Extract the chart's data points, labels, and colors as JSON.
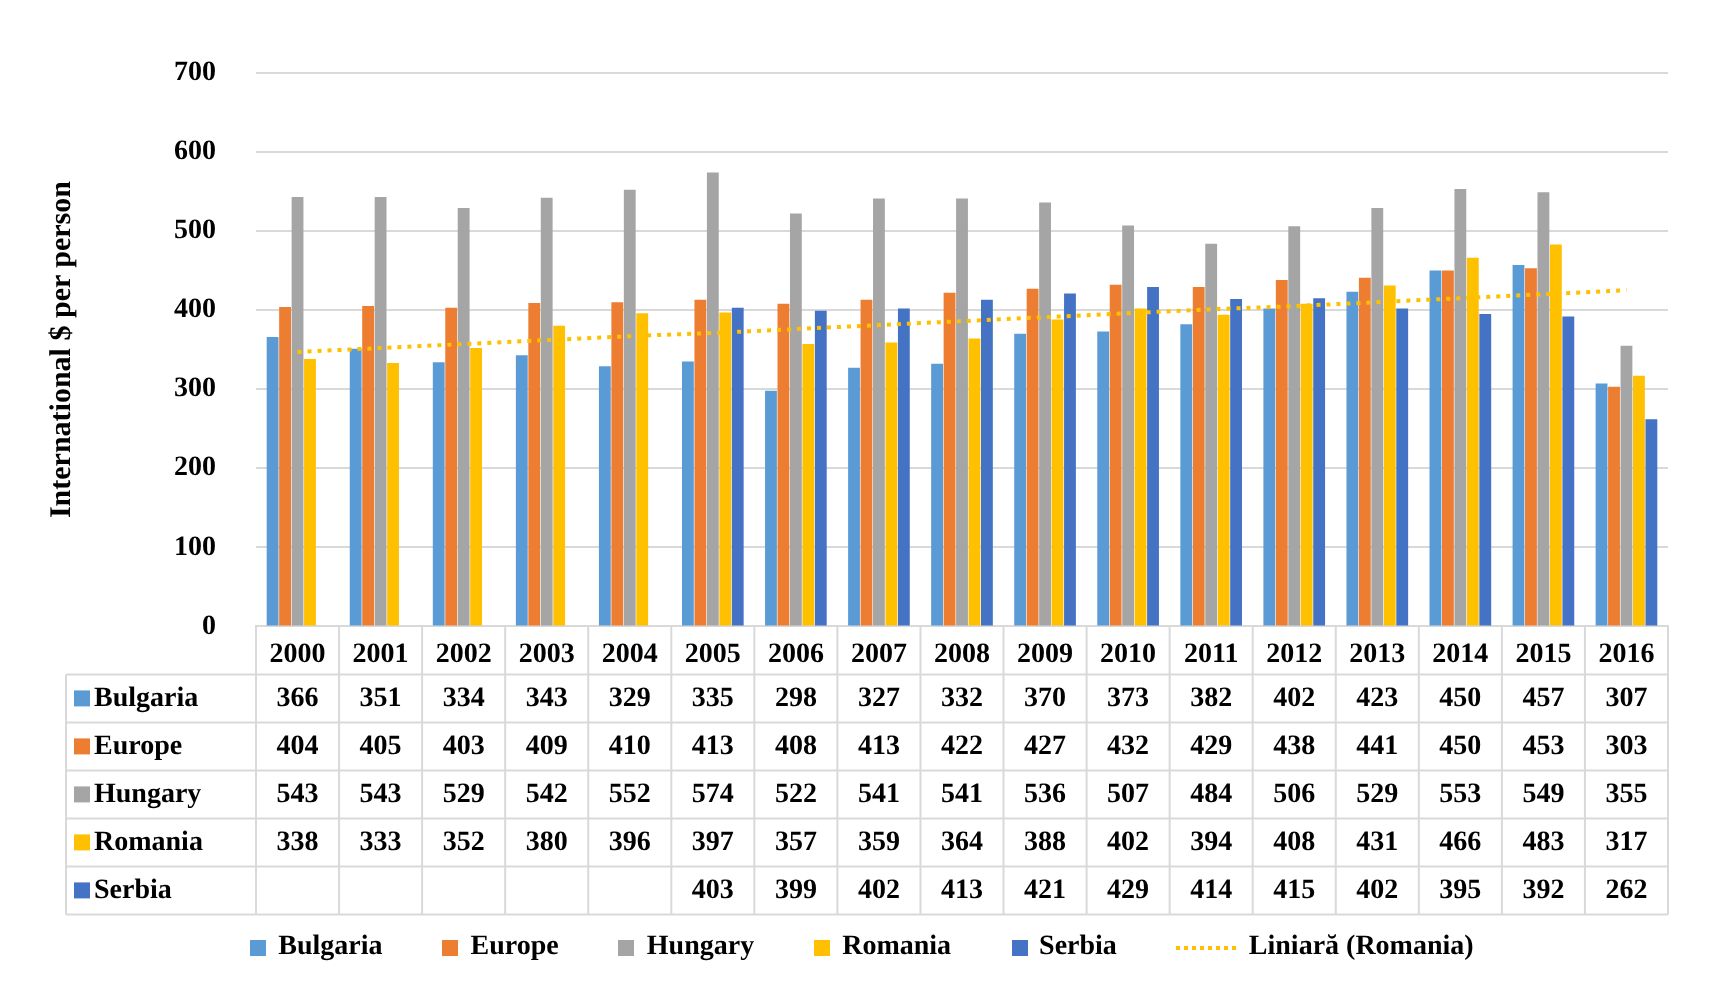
{
  "chart_data": {
    "type": "bar",
    "ylabel": "International $ per person",
    "categories": [
      "2000",
      "2001",
      "2002",
      "2003",
      "2004",
      "2005",
      "2006",
      "2007",
      "2008",
      "2009",
      "2010",
      "2011",
      "2012",
      "2013",
      "2014",
      "2015",
      "2016"
    ],
    "series": [
      {
        "name": "Bulgaria",
        "color": "#5b9bd5",
        "values": [
          366,
          351,
          334,
          343,
          329,
          335,
          298,
          327,
          332,
          370,
          373,
          382,
          402,
          423,
          450,
          457,
          307
        ],
        "value_labels": [
          "366",
          "351",
          "334",
          "343",
          "329",
          "335",
          "298",
          "327",
          "332",
          "370",
          "373",
          "382",
          "402",
          "423",
          "450",
          "457",
          "307"
        ]
      },
      {
        "name": "Europe",
        "color": "#ed7d31",
        "values": [
          404,
          405,
          403,
          409,
          410,
          413,
          408,
          413,
          422,
          427,
          432,
          429,
          438,
          441,
          450,
          453,
          303
        ],
        "value_labels": [
          "404",
          "405",
          "403",
          "409",
          "410",
          "413",
          "408",
          "413",
          "422",
          "427",
          "432",
          "429",
          "438",
          "441",
          "450",
          "453",
          "303"
        ]
      },
      {
        "name": "Hungary",
        "color": "#a5a5a5",
        "values": [
          543,
          543,
          529,
          542,
          552,
          574,
          522,
          541,
          541,
          536,
          507,
          484,
          506,
          529,
          553,
          549,
          355
        ],
        "value_labels": [
          "543",
          "543",
          "529",
          "542",
          "552",
          "574",
          "522",
          "541",
          "541",
          "536",
          "507",
          "484",
          "506",
          "529",
          "553",
          "549",
          "355"
        ]
      },
      {
        "name": "Romania",
        "color": "#ffc000",
        "values": [
          338,
          333,
          352,
          380,
          396,
          397,
          357,
          359,
          364,
          388,
          402,
          394,
          408,
          431,
          466,
          483,
          317
        ],
        "value_labels": [
          "338",
          "333",
          "352",
          "380",
          "396",
          "397",
          "357",
          "359",
          "364",
          "388",
          "402",
          "394",
          "408",
          "431",
          "466",
          "483",
          "317"
        ]
      },
      {
        "name": "Serbia",
        "color": "#4472c4",
        "values": [
          null,
          null,
          null,
          null,
          null,
          403,
          399,
          402,
          413,
          421,
          429,
          414,
          415,
          402,
          395,
          392,
          262
        ],
        "value_labels": [
          null,
          null,
          null,
          null,
          null,
          "403",
          "399",
          "402",
          "413",
          "421",
          "429",
          "414",
          "415",
          "402",
          "395",
          "392",
          "262"
        ]
      },
      {
        "name": "Liniară (Romania)",
        "type": "line",
        "color": "#ffc000",
        "line_style": "dotted",
        "values": [
          347,
          352,
          357,
          362,
          367,
          371,
          376,
          381,
          386,
          391,
          396,
          401,
          405,
          410,
          415,
          420,
          425
        ]
      }
    ],
    "ylim": [
      0,
      700
    ],
    "yticks": [
      0,
      100,
      200,
      300,
      400,
      500,
      600,
      700
    ],
    "grid": "y",
    "legend": "bottom"
  }
}
